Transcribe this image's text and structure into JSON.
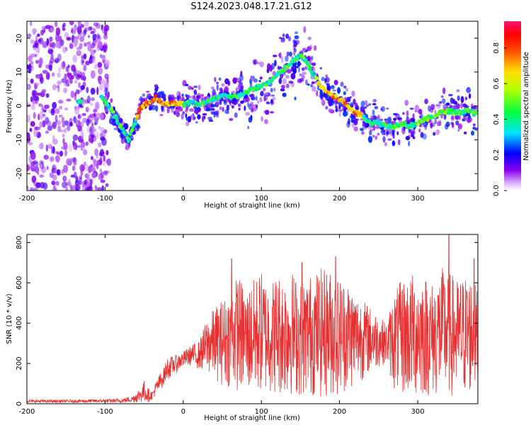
{
  "title": "S124.2023.048.17.21.G12",
  "chart_data": [
    {
      "type": "heatmap",
      "xlabel": "Height of straight line (km)",
      "ylabel": "Frequency (Hz)",
      "xlim": [
        -200,
        377
      ],
      "ylim": [
        -25,
        25
      ],
      "xticks": [
        -200,
        -100,
        0,
        100,
        200,
        300
      ],
      "yticks": [
        -20,
        -10,
        0,
        10,
        20
      ],
      "colorbar": {
        "label": "Normalized spectral amplitude",
        "range": [
          0.0,
          0.95
        ],
        "ticks": [
          "0.0",
          "0.2",
          "0.4",
          "0.6",
          "0.8"
        ]
      },
      "ridge": {
        "x": [
          -135,
          -105,
          -95,
          -85,
          -80,
          -75,
          -70,
          -65,
          -60,
          -55,
          -50,
          -45,
          -40,
          -35,
          -30,
          -25,
          -20,
          -15,
          -10,
          -5,
          0,
          10,
          20,
          30,
          40,
          50,
          60,
          70,
          80,
          90,
          100,
          110,
          120,
          130,
          140,
          150,
          160,
          170,
          175,
          180,
          190,
          200,
          210,
          220,
          230,
          240,
          250,
          260,
          270,
          280,
          290,
          300,
          310,
          320,
          330,
          340,
          350,
          360,
          370
        ],
        "y": [
          1.5,
          2.5,
          0,
          -4,
          -6,
          -8,
          -10,
          -7,
          -4,
          -1,
          0.5,
          1,
          1.5,
          2.5,
          1.5,
          0.5,
          0.5,
          1,
          1,
          0.5,
          0.5,
          1,
          0.5,
          1,
          2,
          3,
          2.5,
          3,
          4,
          5,
          6,
          7,
          9,
          11,
          13,
          15,
          12,
          8,
          6,
          5,
          3,
          2,
          0,
          -2,
          -3,
          -5,
          -5,
          -6,
          -6,
          -5,
          -6,
          -5,
          -4,
          -3,
          -2,
          -1.5,
          -2,
          -1.5,
          -2
        ]
      }
    },
    {
      "type": "line",
      "xlabel": "Height of straight line (km)",
      "ylabel": "SNR (10 * v/v)",
      "xlim": [
        -200,
        377
      ],
      "ylim": [
        0,
        840
      ],
      "xticks": [
        -200,
        -100,
        0,
        100,
        200,
        300
      ],
      "yticks": [
        0,
        200,
        400,
        600,
        800
      ],
      "envelope": {
        "x": [
          -200,
          -150,
          -80,
          -65,
          -55,
          -50,
          -45,
          -40,
          -35,
          -30,
          -25,
          -20,
          -10,
          0,
          10,
          20,
          30,
          40,
          50,
          60,
          70,
          80,
          90,
          100,
          110,
          120,
          130,
          140,
          150,
          160,
          170,
          180,
          190,
          200,
          210,
          220,
          230,
          240,
          250,
          260,
          270,
          280,
          290,
          300,
          310,
          320,
          330,
          340,
          350,
          360,
          370,
          377
        ],
        "high": [
          20,
          20,
          25,
          40,
          80,
          110,
          80,
          60,
          110,
          150,
          180,
          230,
          240,
          260,
          290,
          310,
          420,
          480,
          520,
          550,
          650,
          560,
          620,
          660,
          600,
          650,
          640,
          660,
          600,
          640,
          660,
          680,
          660,
          630,
          620,
          560,
          520,
          480,
          440,
          400,
          560,
          620,
          640,
          660,
          640,
          600,
          680,
          660,
          620,
          640,
          640,
          560
        ],
        "low": [
          5,
          5,
          5,
          5,
          5,
          5,
          5,
          20,
          40,
          60,
          90,
          120,
          150,
          180,
          190,
          170,
          150,
          120,
          90,
          80,
          60,
          50,
          40,
          40,
          50,
          40,
          30,
          40,
          30,
          40,
          30,
          20,
          30,
          40,
          60,
          80,
          120,
          150,
          180,
          200,
          60,
          30,
          30,
          20,
          30,
          30,
          20,
          30,
          20,
          30,
          40,
          60
        ],
        "peaks": [
          [
            -50,
            110
          ],
          [
            62,
            720
          ],
          [
            152,
            700
          ],
          [
            195,
            730
          ],
          [
            340,
            840
          ],
          [
            372,
            720
          ]
        ]
      },
      "line_color": "#e83030"
    }
  ]
}
